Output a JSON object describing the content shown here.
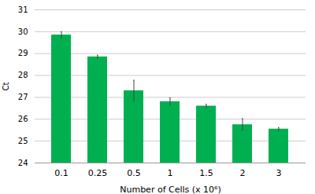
{
  "chart_data": {
    "type": "bar",
    "categories": [
      "0.1",
      "0.25",
      "0.5",
      "1",
      "1.5",
      "2",
      "3"
    ],
    "values": [
      29.85,
      28.85,
      27.3,
      26.8,
      26.6,
      25.75,
      25.55
    ],
    "errors": [
      0.15,
      0.08,
      0.48,
      0.18,
      0.08,
      0.28,
      0.07
    ],
    "color": "#00b050",
    "xlabel": "Number of Cells (x 10⁶)",
    "ylabel": "Ct",
    "ylim": [
      24,
      31
    ],
    "yticks": [
      24,
      25,
      26,
      27,
      28,
      29,
      30,
      31
    ],
    "grid": true
  }
}
